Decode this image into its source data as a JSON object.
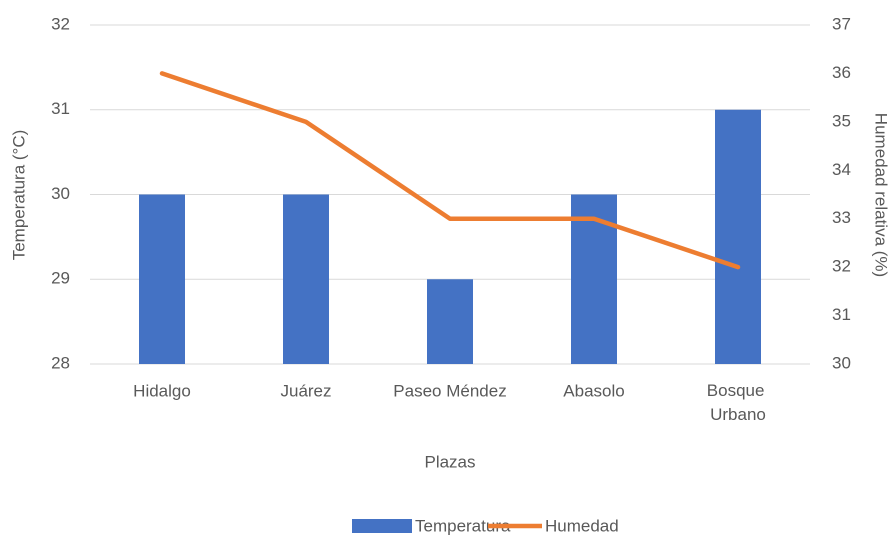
{
  "chart_data": {
    "type": "bar",
    "categories": [
      "Hidalgo",
      "Juárez",
      "Paseo Méndez",
      "Abasolo",
      "Bosque Urbano"
    ],
    "series": [
      {
        "name": "Temperatura",
        "color": "#4472c4",
        "values": [
          30,
          30,
          29,
          30,
          31
        ]
      },
      {
        "name": "Humedad",
        "color": "#ed7d31",
        "type": "line",
        "axis": "y2",
        "values": [
          36,
          35,
          33,
          33,
          32
        ]
      }
    ],
    "xlabel": "Plazas",
    "ylabel": "Temperatura (°C)",
    "y2label": "Humedad relativa (%)",
    "ylim": [
      28,
      32
    ],
    "yticks": [
      28,
      29,
      30,
      31,
      32
    ],
    "y2lim": [
      30,
      37
    ],
    "y2ticks": [
      30,
      31,
      32,
      33,
      34,
      35,
      36,
      37
    ],
    "grid": true,
    "legend": "bottom"
  }
}
